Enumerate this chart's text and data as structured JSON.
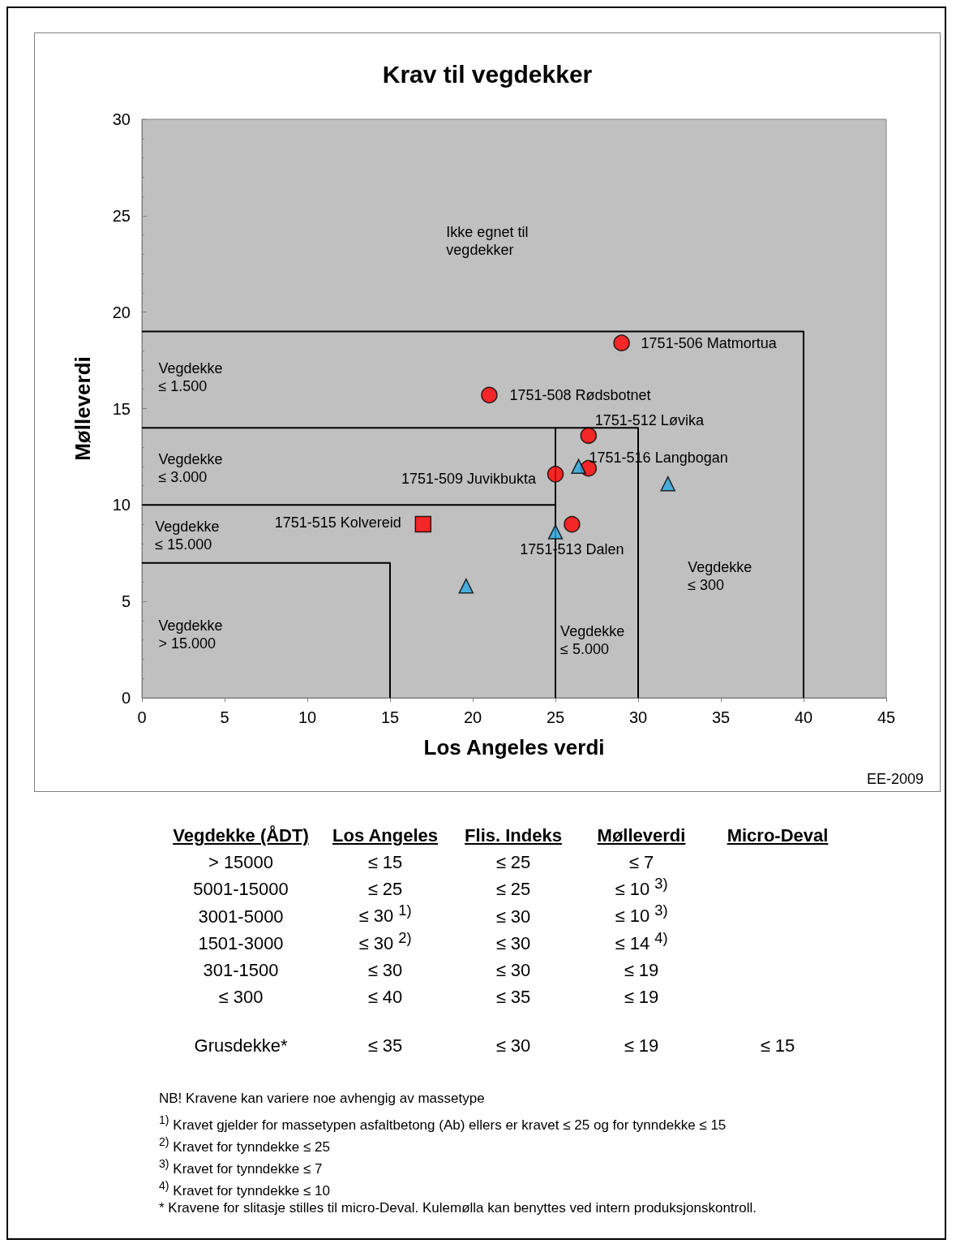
{
  "chart_data": {
    "type": "scatter",
    "title": "Krav til vegdekker",
    "xlabel": "Los Angeles verdi",
    "ylabel": "Mølleverdi",
    "xlim": [
      0,
      45
    ],
    "xticks": [
      0,
      5,
      10,
      15,
      20,
      25,
      30,
      35,
      40,
      45
    ],
    "ylim": [
      0,
      30
    ],
    "yticks": [
      0,
      5,
      10,
      15,
      20,
      25,
      30
    ],
    "grid": false,
    "series": [
      {
        "type": "line",
        "color": "#000000",
        "marker": "none",
        "x": [
          0,
          40,
          40
        ],
        "values": [
          19,
          19,
          0
        ]
      },
      {
        "type": "line",
        "color": "#000000",
        "marker": "none",
        "x": [
          0,
          30,
          30
        ],
        "values": [
          14,
          14,
          0
        ]
      },
      {
        "type": "line",
        "color": "#000000",
        "marker": "none",
        "x": [
          0,
          25
        ],
        "values": [
          10,
          10
        ]
      },
      {
        "type": "line",
        "color": "#000000",
        "marker": "none",
        "x": [
          25,
          25
        ],
        "values": [
          14,
          0
        ]
      },
      {
        "type": "line",
        "color": "#000000",
        "marker": "none",
        "x": [
          0,
          15,
          15
        ],
        "values": [
          7,
          7,
          0
        ]
      },
      {
        "color": "#ff0000",
        "marker": "circle",
        "x": [
          29,
          21,
          27,
          25,
          27,
          26
        ],
        "values": [
          18.4,
          15.7,
          13.6,
          11.6,
          11.9,
          9.0
        ]
      },
      {
        "color": "#ff0000",
        "marker": "square",
        "x": [
          17
        ],
        "values": [
          9.0
        ]
      },
      {
        "color": "#29a8e0",
        "marker": "triangle",
        "x": [
          26.4,
          31.8,
          25,
          19.6
        ],
        "values": [
          12.0,
          11.1,
          8.6,
          5.8
        ]
      }
    ],
    "annotations": [
      {
        "text": "1751-506 Matmortua",
        "x": 29,
        "y": 18.4
      },
      {
        "text": "1751-508 Rødsbotnet",
        "x": 21,
        "y": 15.7
      },
      {
        "text": "1751-512 Løvika",
        "x": 27,
        "y": 13.6
      },
      {
        "text": "1751-516 Langbogan",
        "x": 26.4,
        "y": 12.0
      },
      {
        "text": "1751-509 Juvikbukta",
        "x": 25,
        "y": 11.6
      },
      {
        "text": "1751-515 Kolvereid",
        "x": 17,
        "y": 9.0
      },
      {
        "text": "1751-513 Dalen",
        "x": 26,
        "y": 9.0
      },
      "Ikke egnet til\nvegdekker",
      "Vegdekke\n≤ 1.500",
      "Vegdekke\n≤ 3.000",
      "Vegdekke\n≤ 15.000",
      "Vegdekke\n> 15.000",
      "Vegdekke\n≤ 300",
      "Vegdekke\n≤ 5.000",
      "EE-2009",
      "Vegdekke (ÅDT)\tLos Angeles\tFlis. Indeks\tMølleverdi\tMicro-Deval",
      "> 15000\t≤ 15\t≤ 25\t≤ 7",
      "5001-15000\t≤ 25\t≤ 25\t≤ 10 $^{3)}$",
      "3001-5000\t≤ 30 $^{1)}$\t≤ 30\t≤ 10 $^{3)}$",
      "1501-3000\t≤ 30 $^{2)}$\t≤ 30\t≤ 14 $^{4)}$",
      "301-1500\t≤ 30\t≤ 30\t≤ 19",
      "≤ 300\t≤ 40\t≤ 35\t≤ 19",
      "Grusdekke*\t≤ 35\t≤ 30\t≤ 19\t≤ 15",
      "NB! Kravene kan variere noe avhengig av massetype",
      "$^{1)}$ Kravet gjelder for massetypen asfaltbetong (Ab) ellers er kravet ≤ 25  og for tynndekke ≤ 15",
      "$^{2)}$ Kravet for tynndekke ≤ 25",
      "$^{3)}$ Kravet for tynndekke ≤ 7",
      "$^{4)}$ Kravet for tynndekke ≤ 10",
      "* Kravene for slitasje stilles til micro-Deval. Kulemølla kan benyttes ved intern produksjonskontroll."
    ]
  }
}
